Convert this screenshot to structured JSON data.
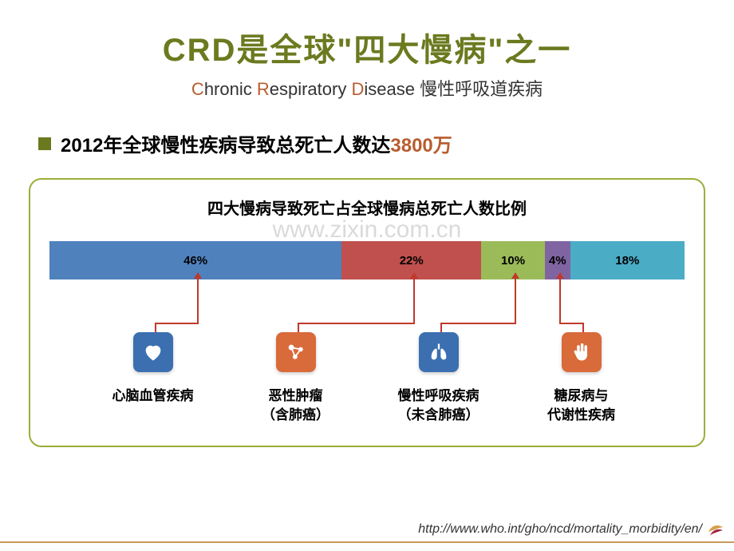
{
  "title": {
    "main": "CRD是全球\"四大慢病\"之一",
    "main_color": "#6b7a1f",
    "main_fontsize": 40,
    "subtitle_parts": {
      "c": "C",
      "hronic": "hronic ",
      "r": "R",
      "espiratory": "espiratory ",
      "d": "D",
      "isease": "isease  慢性呼吸道疾病"
    },
    "subtitle_highlight_color": "#b85c2f",
    "subtitle_fontsize": 22
  },
  "bullet": {
    "prefix": "2012年全球慢性疾病导致总死亡人数达",
    "highlight": "3800万",
    "highlight_color": "#b85c2f",
    "square_color": "#6b7a1f",
    "fontsize": 24
  },
  "chart": {
    "border_color": "#9aae3a",
    "title": "四大慢病导致死亡占全球慢病总死亡人数比例",
    "title_fontsize": 20,
    "watermark": "www.zixin.com.cn",
    "type": "stacked-bar-percent",
    "segments": [
      {
        "label": "46%",
        "value": 46,
        "color": "#4f81bd"
      },
      {
        "label": "22%",
        "value": 22,
        "color": "#c0504d"
      },
      {
        "label": "10%",
        "value": 10,
        "color": "#9bbb59"
      },
      {
        "label": "4%",
        "value": 4,
        "color": "#8064a2"
      },
      {
        "label": "18%",
        "value": 18,
        "color": "#4bacc6"
      }
    ],
    "arrow_color": "#c0392b",
    "arrow_targets": [
      0,
      1,
      2,
      3
    ],
    "categories": [
      {
        "label": "心脑血管疾病",
        "icon": "heart",
        "icon_bg": "#3b6fb0"
      },
      {
        "label": "恶性肿瘤\n（含肺癌）",
        "icon": "molecule",
        "icon_bg": "#d96a3a"
      },
      {
        "label": "慢性呼吸疾病\n（未含肺癌）",
        "icon": "lungs",
        "icon_bg": "#3b6fb0"
      },
      {
        "label": "糖尿病与\n代谢性疾病",
        "icon": "hand",
        "icon_bg": "#d96a3a"
      }
    ]
  },
  "source": "http://www.who.int/gho/ncd/mortality_morbidity/en/",
  "bottom_line_color": "#c99b5a"
}
